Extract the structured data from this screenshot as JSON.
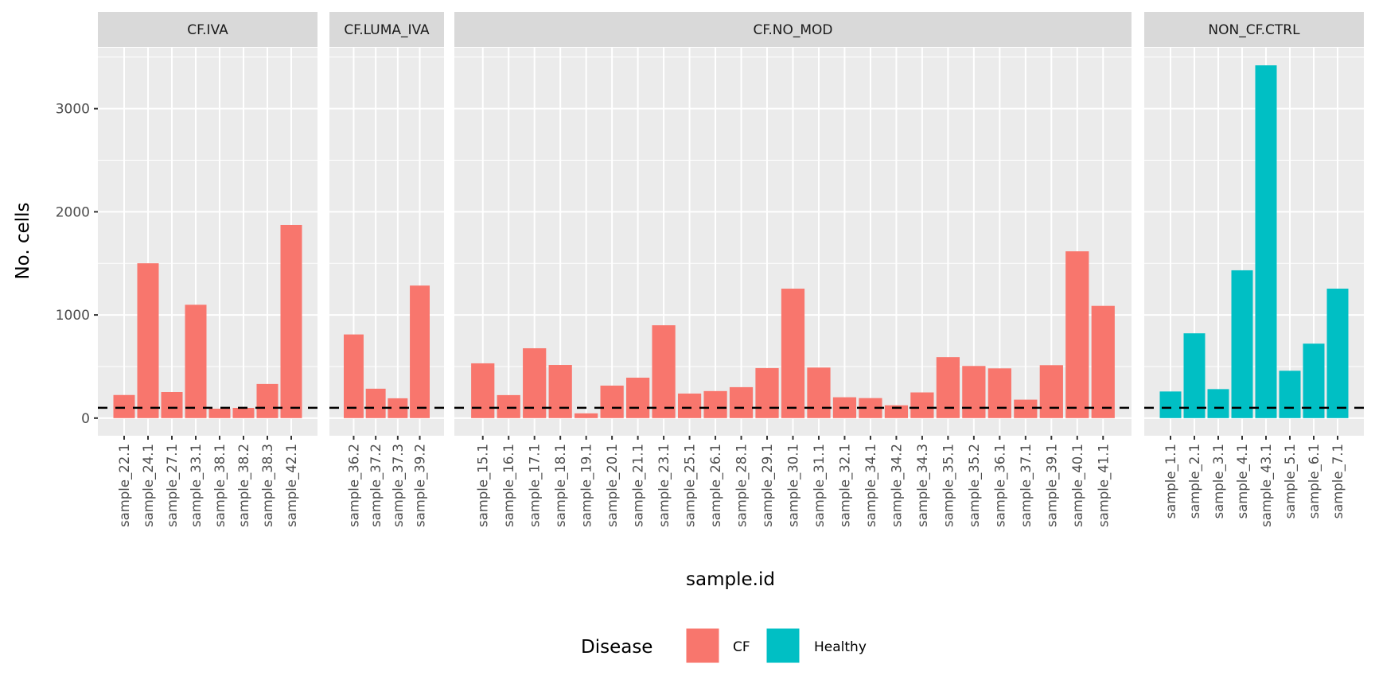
{
  "chart_data": {
    "type": "bar",
    "xlabel": "sample.id",
    "ylabel": "No. cells",
    "ylim": [
      -171,
      3591
    ],
    "yticks": [
      0,
      1000,
      2000,
      3000
    ],
    "grid": true,
    "reference_line": {
      "y": 100,
      "style": "dashed",
      "color": "#000000"
    },
    "legend": {
      "title": "Disease",
      "position": "bottom",
      "entries": [
        {
          "label": "CF",
          "color": "#F8766D"
        },
        {
          "label": "Healthy",
          "color": "#00BFC4"
        }
      ]
    },
    "panels": [
      {
        "title": "CF.IVA",
        "disease": "CF",
        "categories": [
          "sample_22.1",
          "sample_24.1",
          "sample_27.1",
          "sample_33.1",
          "sample_38.1",
          "sample_38.2",
          "sample_38.3",
          "sample_42.1"
        ],
        "values": [
          224,
          1501,
          253,
          1099,
          91,
          99,
          331,
          1872
        ]
      },
      {
        "title": "CF.LUMA_IVA",
        "disease": "CF",
        "categories": [
          "sample_36.2",
          "sample_37.2",
          "sample_37.3",
          "sample_39.2"
        ],
        "values": [
          811,
          285,
          192,
          1285
        ]
      },
      {
        "title": "CF.NO_MOD",
        "disease": "CF",
        "categories": [
          "sample_15.1",
          "sample_16.1",
          "sample_17.1",
          "sample_18.1",
          "sample_19.1",
          "sample_20.1",
          "sample_21.1",
          "sample_23.1",
          "sample_25.1",
          "sample_26.1",
          "sample_28.1",
          "sample_29.1",
          "sample_30.1",
          "sample_31.1",
          "sample_32.1",
          "sample_34.1",
          "sample_34.2",
          "sample_34.3",
          "sample_35.1",
          "sample_35.2",
          "sample_36.1",
          "sample_37.1",
          "sample_39.1",
          "sample_40.1",
          "sample_41.1"
        ],
        "values": [
          531,
          223,
          677,
          515,
          46,
          315,
          392,
          900,
          238,
          262,
          300,
          485,
          1255,
          490,
          202,
          194,
          124,
          249,
          591,
          505,
          482,
          179,
          513,
          1617,
          1088
        ]
      },
      {
        "title": "NON_CF.CTRL",
        "disease": "Healthy",
        "categories": [
          "sample_1.1",
          "sample_2.1",
          "sample_3.1",
          "sample_4.1",
          "sample_43.1",
          "sample_5.1",
          "sample_6.1",
          "sample_7.1"
        ],
        "values": [
          258,
          822,
          281,
          1433,
          3420,
          459,
          722,
          1255
        ]
      }
    ]
  }
}
